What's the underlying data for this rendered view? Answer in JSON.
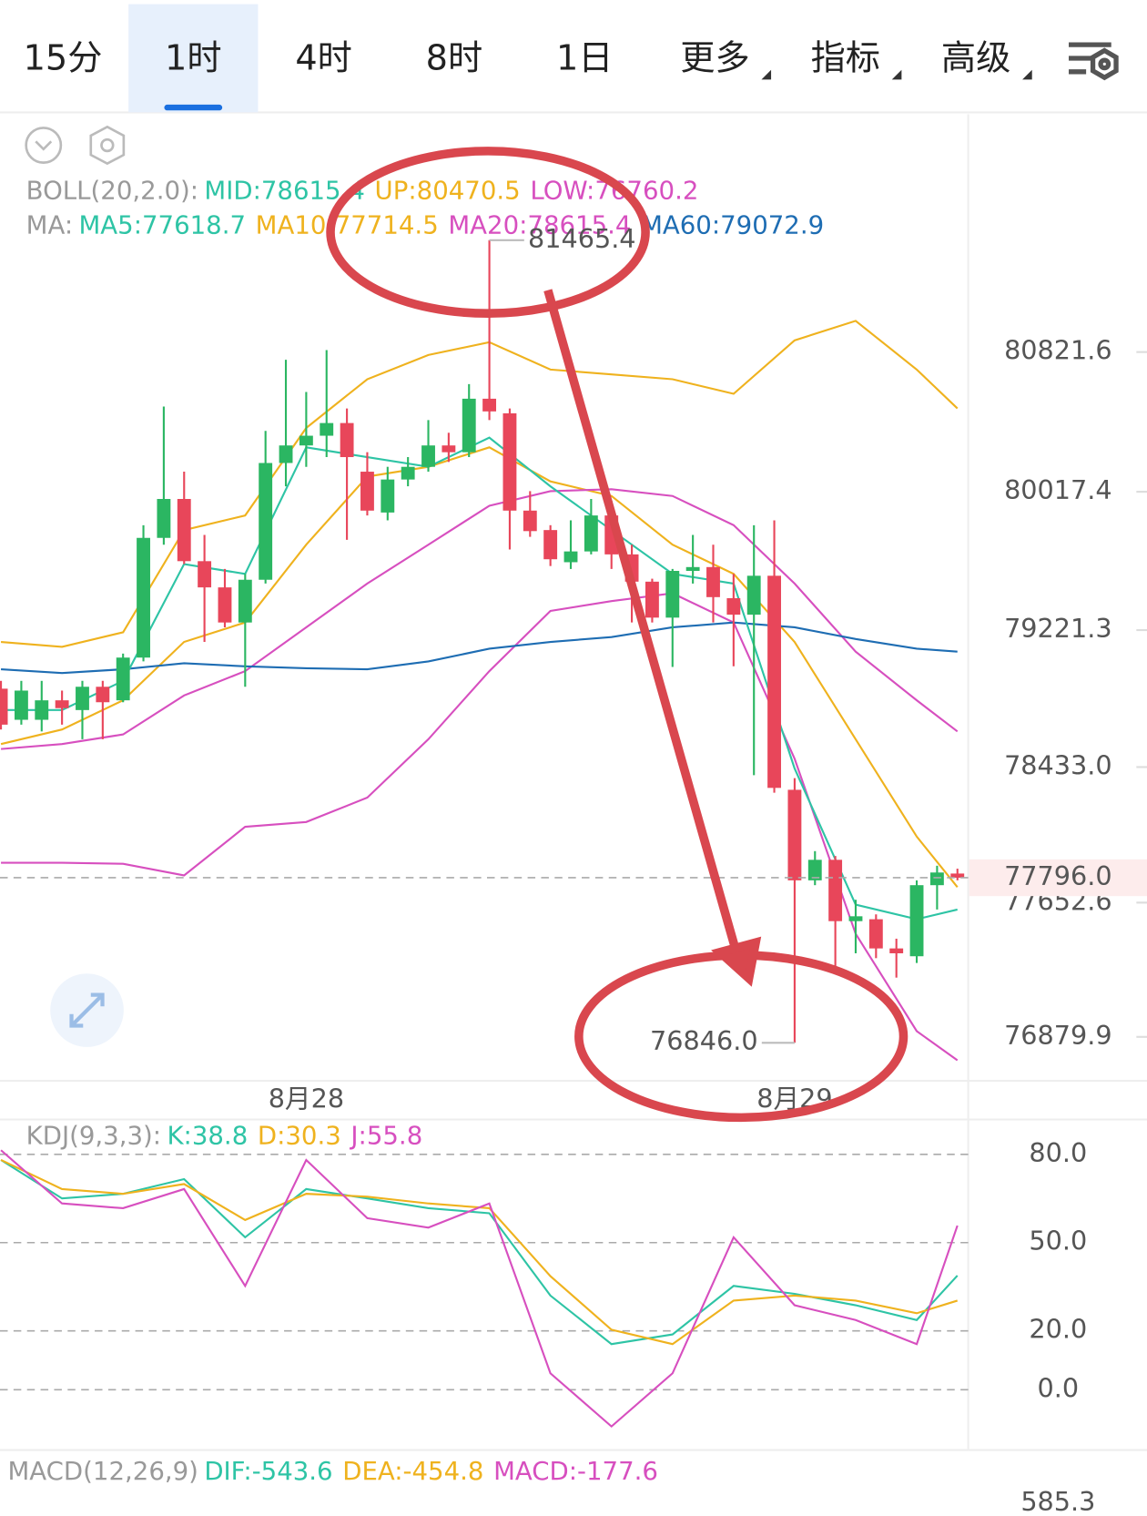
{
  "tabs": [
    {
      "label": "15分"
    },
    {
      "label": "1时"
    },
    {
      "label": "4时"
    },
    {
      "label": "8时"
    },
    {
      "label": "1日"
    },
    {
      "label": "更多",
      "dropdown": true
    },
    {
      "label": "指标",
      "dropdown": true
    },
    {
      "label": "高级",
      "dropdown": true
    }
  ],
  "active_tab": "1时",
  "chart_data": [
    {
      "type": "candlestick",
      "legends": [
        {
          "title": "BOLL(20,2.0):",
          "items": [
            {
              "text": "MID:78615.4",
              "color": "#2ec4a5"
            },
            {
              "text": "UP:80470.5",
              "color": "#efb21e"
            },
            {
              "text": "LOW:76760.2",
              "color": "#d74fbf"
            }
          ]
        },
        {
          "title": "MA:",
          "items": [
            {
              "text": "MA5:77618.7",
              "color": "#2ec4a5"
            },
            {
              "text": "MA10:77714.5",
              "color": "#efb21e"
            },
            {
              "text": "MA20:78615.4",
              "color": "#d74fbf"
            },
            {
              "text": "MA60:79072.9",
              "color": "#1e6db3"
            }
          ]
        }
      ],
      "up_color": "#2bb662",
      "down_color": "#e8465a",
      "categories": [
        null,
        null,
        null,
        null,
        null,
        null,
        null,
        null,
        null,
        null,
        null,
        null,
        null,
        null,
        null,
        "8月28",
        null,
        null,
        null,
        null,
        null,
        null,
        null,
        null,
        null,
        null,
        null,
        null,
        null,
        null,
        null,
        null,
        null,
        null,
        null,
        null,
        null,
        null,
        null,
        "8月29",
        null,
        null,
        null,
        null,
        null,
        null,
        null,
        null
      ],
      "open": [
        78884,
        78705,
        78705,
        78817,
        78761,
        78895,
        78817,
        79063,
        79752,
        79976,
        79618,
        79467,
        79265,
        79511,
        80183,
        80284,
        80340,
        80413,
        80133,
        79898,
        80088,
        80161,
        80284,
        80245,
        80553,
        80469,
        79909,
        79797,
        79612,
        79674,
        79881,
        79657,
        79500,
        79293,
        79562,
        79584,
        79405,
        79310,
        79534,
        78302,
        77781,
        77899,
        77546,
        77557,
        77389,
        77344,
        77753,
        77820
      ],
      "high": [
        78929,
        78929,
        78929,
        78873,
        78929,
        78929,
        79086,
        79825,
        80508,
        80133,
        79769,
        79573,
        79545,
        80368,
        80777,
        80592,
        80833,
        80497,
        80245,
        80161,
        80217,
        80430,
        80357,
        80637,
        81465.4,
        80497,
        80021,
        79825,
        79853,
        79976,
        79965,
        79713,
        79517,
        79573,
        79769,
        79713,
        79545,
        79825,
        79853,
        78369,
        77949,
        77921,
        77669,
        77585,
        77445,
        77781,
        77865,
        77848
      ],
      "low": [
        78649,
        78677,
        78638,
        78677,
        78593,
        78593,
        78806,
        79041,
        79713,
        79601,
        79153,
        79237,
        78895,
        79489,
        80049,
        80161,
        80217,
        79741,
        79881,
        79853,
        80049,
        80133,
        80189,
        80217,
        80430,
        79685,
        79758,
        79590,
        79573,
        79657,
        79573,
        79265,
        79265,
        79009,
        79489,
        79265,
        79013,
        78386,
        78285,
        76846.0,
        77753,
        77249,
        77361,
        77333,
        77221,
        77305,
        77613,
        77781
      ],
      "close": [
        78677,
        78873,
        78817,
        78772,
        78895,
        78806,
        79063,
        79752,
        79976,
        79618,
        79467,
        79265,
        79511,
        80183,
        80284,
        80340,
        80413,
        80217,
        79909,
        80088,
        80161,
        80284,
        80245,
        80553,
        80480,
        79909,
        79791,
        79629,
        79674,
        79881,
        79657,
        79500,
        79293,
        79562,
        79584,
        79411,
        79310,
        79534,
        78313,
        77781,
        77899,
        77546,
        77574,
        77389,
        77361,
        77753,
        77826,
        77796.0
      ],
      "max_label": "81465.4",
      "min_label": "76846.0",
      "last_label": "77796.0",
      "x": [
        0,
        3,
        6,
        9,
        12,
        15,
        18,
        21,
        24,
        27,
        30,
        33,
        36,
        39,
        42,
        45,
        47
      ],
      "series": [
        {
          "color": "#efb21e",
          "values": [
            79153,
            79125,
            79209,
            79797,
            79881,
            80385,
            80665,
            80805,
            80878,
            80721,
            80693,
            80665,
            80581,
            80889,
            81001,
            80721,
            80497
          ]
        },
        {
          "color": "#efb21e",
          "values": [
            78565,
            78649,
            78817,
            79153,
            79265,
            79713,
            80105,
            80161,
            80273,
            80077,
            79993,
            79713,
            79545,
            79153,
            78593,
            78033,
            77742
          ]
        },
        {
          "color": "#d74fbf",
          "values": [
            78537,
            78565,
            78621,
            78845,
            78985,
            79237,
            79489,
            79713,
            79937,
            80021,
            80032,
            79993,
            79825,
            79489,
            79097,
            78817,
            78638
          ]
        },
        {
          "color": "#d74fbf",
          "values": [
            77882,
            77882,
            77876,
            77809,
            78089,
            78117,
            78257,
            78593,
            78985,
            79332,
            79388,
            79433,
            79265,
            78481,
            77473,
            76913,
            76745
          ]
        },
        {
          "color": "#1e6db3",
          "values": [
            78996,
            78974,
            78996,
            79030,
            79013,
            79002,
            78996,
            79041,
            79114,
            79153,
            79181,
            79237,
            79265,
            79237,
            79170,
            79114,
            79097
          ]
        },
        {
          "color": "#2ec4a5",
          "values": [
            78761,
            78761,
            78929,
            79601,
            79545,
            80273,
            80217,
            80161,
            80329,
            80049,
            79797,
            79545,
            79489,
            78425,
            77641,
            77557,
            77613
          ]
        }
      ],
      "ylim": [
        76627,
        82190
      ],
      "yticks": [
        80821.6,
        80017.4,
        79221.3,
        {
          "value": 78433.0,
          "label": "78433.0"
        },
        77652.6,
        76879.9
      ]
    },
    {
      "type": "line",
      "legends": [
        {
          "title": "KDJ(9,3,3):",
          "items": [
            {
              "text": "K:38.8",
              "color": "#2ec4a5"
            },
            {
              "text": "D:30.3",
              "color": "#efb21e"
            },
            {
              "text": "J:55.8",
              "color": "#d74fbf"
            }
          ]
        }
      ],
      "x": [
        0,
        3,
        6,
        9,
        12,
        15,
        18,
        21,
        24,
        27,
        30,
        33,
        36,
        39,
        42,
        45,
        47
      ],
      "series": [
        {
          "color": "#2ec4a5",
          "values": [
            78.1,
            65.0,
            66.6,
            71.6,
            51.8,
            68.2,
            65.0,
            61.7,
            60.0,
            32.0,
            15.5,
            18.8,
            35.3,
            32.6,
            28.7,
            23.7,
            38.8
          ]
        },
        {
          "color": "#efb21e",
          "values": [
            78.1,
            68.2,
            66.6,
            69.9,
            57.7,
            66.6,
            65.6,
            63.3,
            61.7,
            38.6,
            20.4,
            15.5,
            30.3,
            32.0,
            30.3,
            26.0,
            30.3
          ]
        },
        {
          "color": "#d74fbf",
          "values": [
            81.4,
            63.3,
            61.7,
            68.2,
            35.3,
            78.1,
            58.3,
            55.1,
            63.3,
            5.6,
            -12.5,
            5.6,
            51.8,
            28.7,
            23.7,
            15.5,
            55.8
          ]
        }
      ],
      "ylim": [
        -20.5,
        91.2
      ],
      "grid": true,
      "yticks": [
        {
          "value": 80,
          "label": "80.0"
        },
        {
          "value": 50,
          "label": "50.0"
        },
        {
          "value": 20,
          "label": "20.0"
        },
        {
          "value": 0,
          "label": "0.0"
        }
      ]
    },
    {
      "type": "macd",
      "legends": [
        {
          "title": "MACD(12,26,9)",
          "items": [
            {
              "text": "DIF:-543.6",
              "color": "#2ec4a5"
            },
            {
              "text": "DEA:-454.8",
              "color": "#efb21e"
            },
            {
              "text": "MACD:-177.6",
              "color": "#d74fbf"
            }
          ]
        }
      ],
      "yticks": [
        585.3
      ]
    }
  ]
}
